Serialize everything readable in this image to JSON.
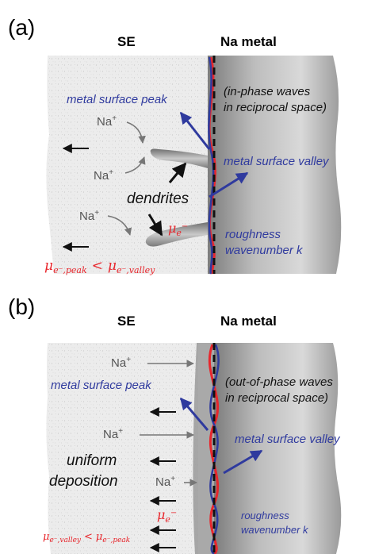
{
  "panel_a": {
    "tag": "(a)",
    "se_label": "SE",
    "metal_label": "Na metal",
    "wave_note_line1": "(in-phase waves",
    "wave_note_line2": "in reciprocal space)",
    "peak_label": "metal surface peak",
    "valley_label": "metal surface valley",
    "ion": "Na",
    "ion_charge": "+",
    "dendrites_label": "dendrites",
    "mu": "μ",
    "mu_sub": "e",
    "mu_sup": "−",
    "roughness_line1": "roughness",
    "roughness_line2": "wavenumber k",
    "inequality_left_sub": "e⁻,peak",
    "inequality_op": "<",
    "inequality_right_sub": "e⁻,valley"
  },
  "panel_b": {
    "tag": "(b)",
    "se_label": "SE",
    "metal_label": "Na metal",
    "wave_note_line1": "(out-of-phase waves",
    "wave_note_line2": "in reciprocal space)",
    "peak_label": "metal surface peak",
    "valley_label": "metal surface valley",
    "ion": "Na",
    "ion_charge": "+",
    "uniform_line1": "uniform",
    "uniform_line2": "deposition",
    "mu": "μ",
    "mu_sub": "e",
    "mu_sup": "−",
    "roughness_line1": "roughness",
    "roughness_line2": "wavenumber k",
    "inequality_left_sub": "e⁻,valley",
    "inequality_op": "<",
    "inequality_right_sub": "e⁻,peak"
  },
  "colors": {
    "red": "#e8262c",
    "blue": "#2f3a9e",
    "black": "#111111",
    "arrow_gray": "#777777",
    "se_fill": "#e9e9e9",
    "metal_dark": "#8c8c8c",
    "metal_light": "#d6d6d6"
  }
}
